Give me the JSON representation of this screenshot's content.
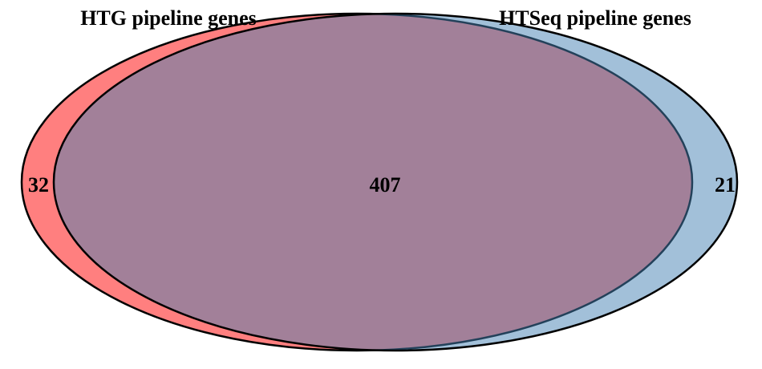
{
  "venn": {
    "sets": [
      {
        "title": "HTG pipeline genes",
        "only_count": "32",
        "fill": "#ff0000",
        "fill_opacity": 0.5
      },
      {
        "title": "HTSeq pipeline genes",
        "only_count": "21",
        "fill": "#4682b4",
        "fill_opacity": 0.5
      }
    ],
    "intersection_count": "407",
    "outline_color": "#000000"
  }
}
